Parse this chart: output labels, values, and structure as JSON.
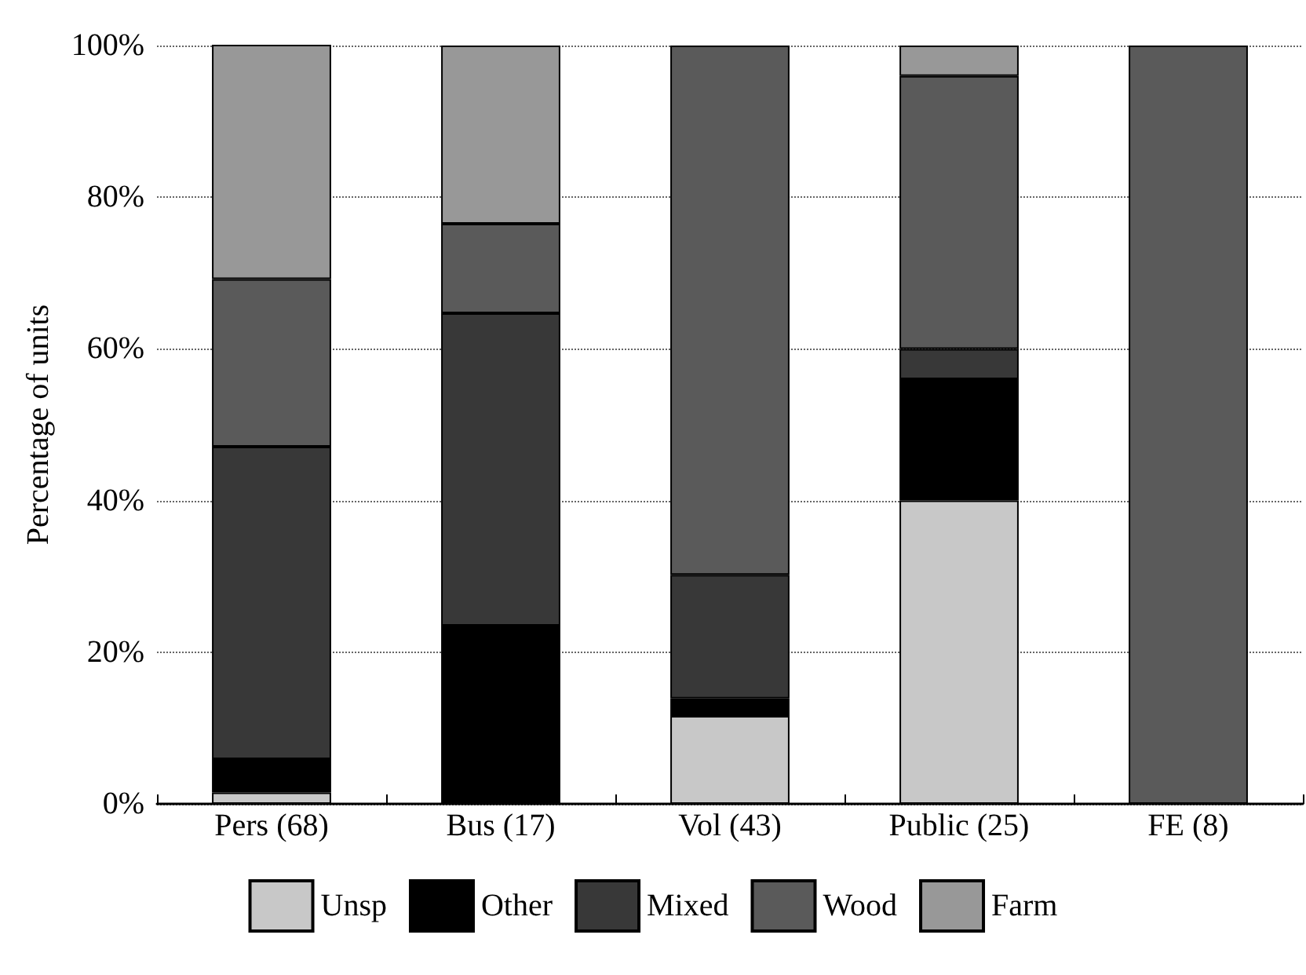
{
  "chart_data": {
    "type": "bar",
    "ylabel": "Percentage of units",
    "stacked": true,
    "categories": [
      "Pers (68)",
      "Bus (17)",
      "Vol (43)",
      "Public (25)",
      "FE (8)"
    ],
    "series": [
      {
        "name": "Unsp",
        "color": "#c8c8c8",
        "values": [
          1.5,
          0,
          11.6,
          40,
          0
        ]
      },
      {
        "name": "Other",
        "color": "#000000",
        "values": [
          4.4,
          23.5,
          2.3,
          16,
          0
        ]
      },
      {
        "name": "Mixed",
        "color": "#383838",
        "values": [
          41.2,
          41.2,
          16.3,
          4,
          0
        ]
      },
      {
        "name": "Wood",
        "color": "#5a5a5a",
        "values": [
          22.1,
          11.8,
          69.8,
          36,
          100
        ]
      },
      {
        "name": "Farm",
        "color": "#989898",
        "values": [
          30.9,
          23.5,
          0,
          4,
          0
        ]
      }
    ],
    "ylim": [
      0,
      100
    ],
    "yticks": [
      {
        "value": 0,
        "label": "0%"
      },
      {
        "value": 20,
        "label": "20%"
      },
      {
        "value": 40,
        "label": "40%"
      },
      {
        "value": 60,
        "label": "60%"
      },
      {
        "value": 80,
        "label": "80%"
      },
      {
        "value": 100,
        "label": "100%"
      }
    ],
    "grid": "y",
    "legend": "bottom"
  }
}
